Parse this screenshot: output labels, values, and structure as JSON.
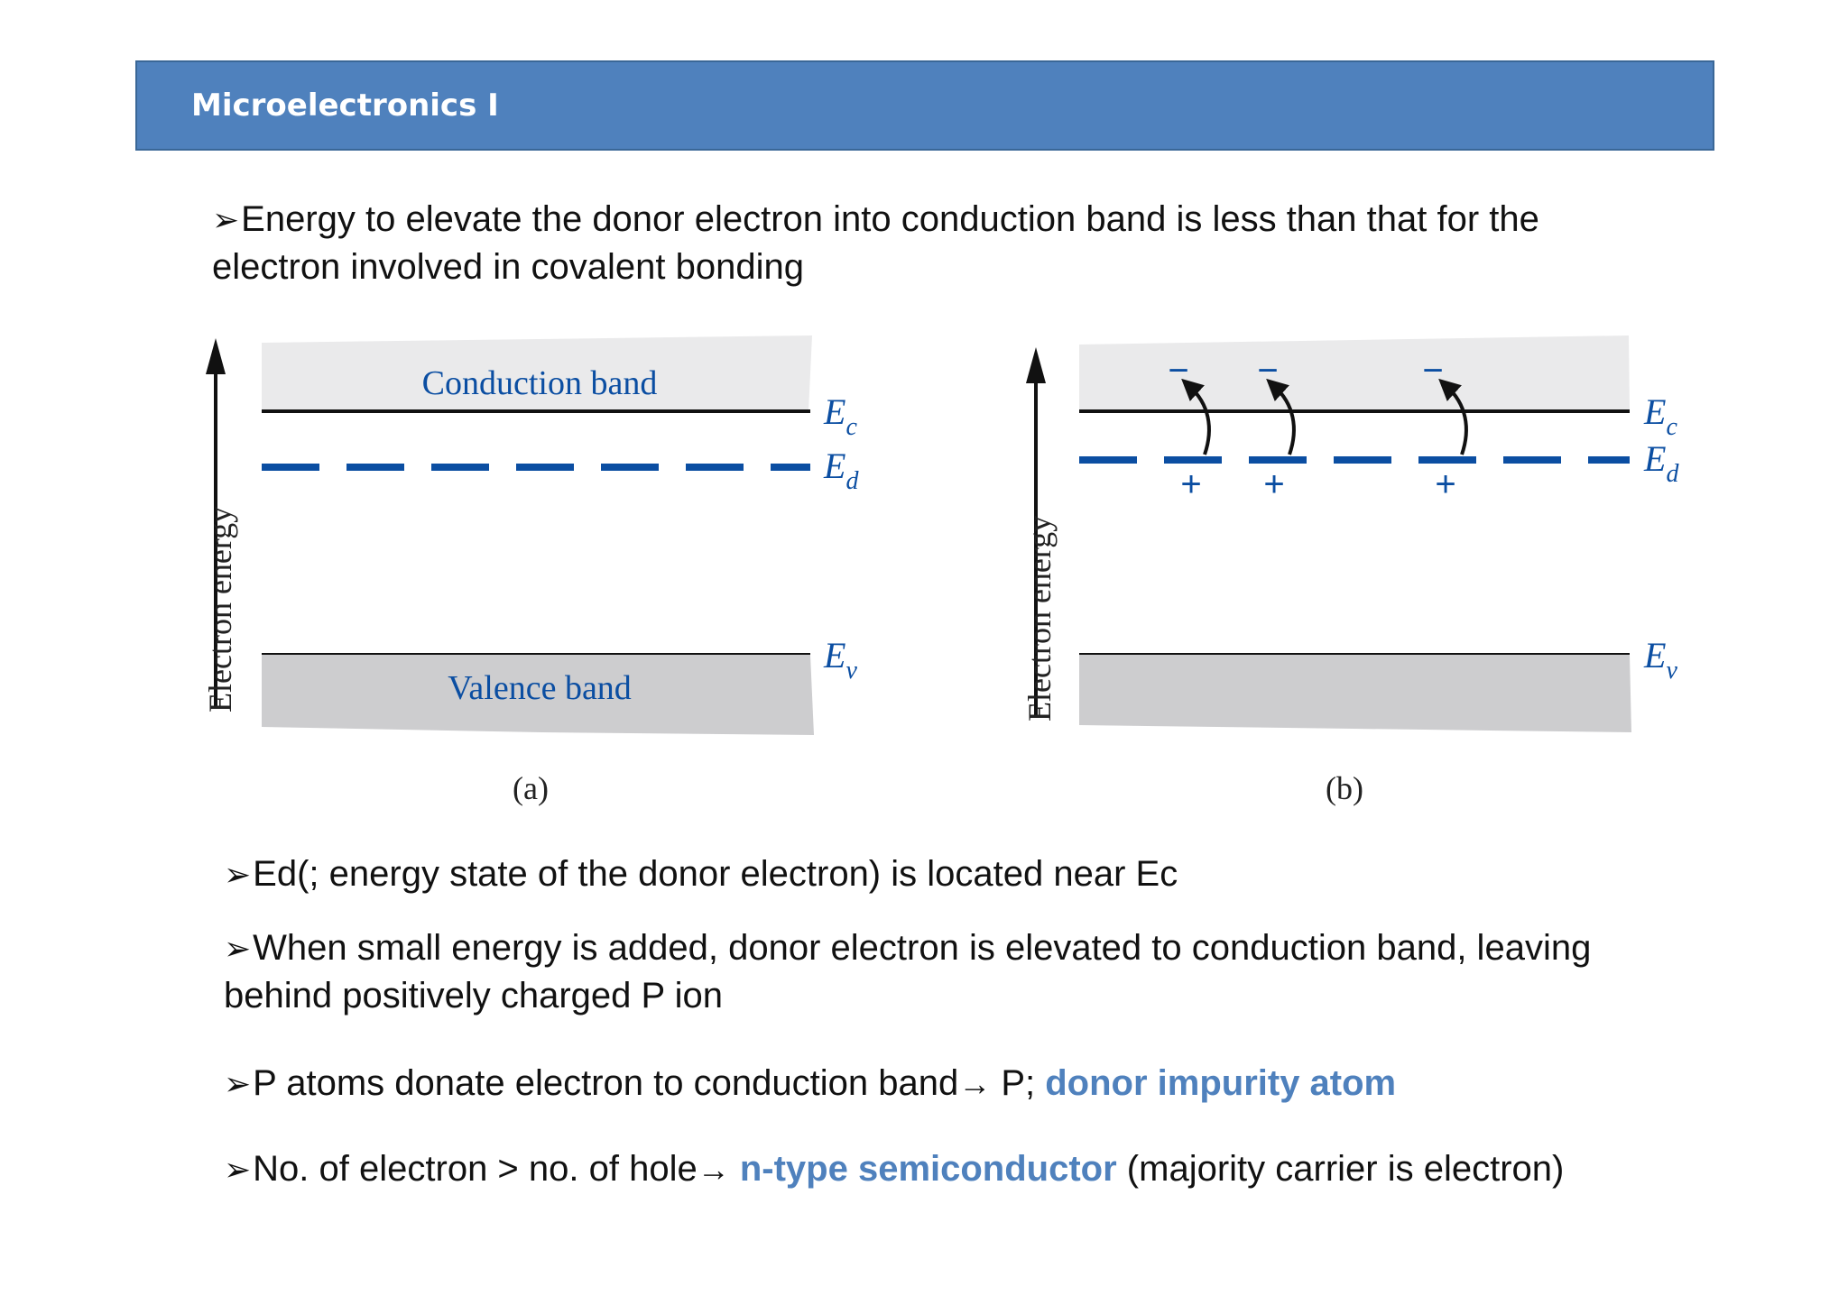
{
  "header": {
    "title": "Microelectronics I"
  },
  "bullets": {
    "b1": {
      "mark": "➢",
      "text": "Energy to elevate the donor electron into conduction band is less than that for the electron involved in covalent bonding"
    },
    "b2": {
      "mark": "➢",
      "text": "Ed(; energy state of the donor electron) is located near Ec"
    },
    "b3": {
      "mark": "➢",
      "text": "When small energy is added, donor electron is elevated to conduction band, leaving behind positively charged P ion"
    },
    "b4": {
      "mark": "➢",
      "pre": "P atoms donate electron to conduction band",
      "arrow": "→",
      "mid": " P; ",
      "highlight": "donor impurity atom"
    },
    "b5": {
      "mark": "➢",
      "pre": "No. of electron > no. of hole",
      "arrow": "→",
      "mid": " ",
      "highlight": "n-type semiconductor",
      "post": " (majority carrier is electron)"
    }
  },
  "figure": {
    "panel_a": {
      "caption": "(a)",
      "axis_label": "Electron energy",
      "conduction_label": "Conduction band",
      "valence_label": "Valence band",
      "ec_label": "E",
      "ec_sub": "c",
      "ed_label": "E",
      "ed_sub": "d",
      "ev_label": "E",
      "ev_sub": "v"
    },
    "panel_b": {
      "caption": "(b)",
      "axis_label": "Electron energy",
      "ec_label": "E",
      "ec_sub": "c",
      "ed_label": "E",
      "ed_sub": "d",
      "ev_label": "E",
      "ev_sub": "v",
      "minus": "−",
      "plus": "+"
    }
  },
  "colors": {
    "header_bg": "#4f81bd",
    "accent_blue": "#0b4ea2",
    "band_light": "#eaeaeb",
    "band_dark": "#cdcdcf"
  }
}
